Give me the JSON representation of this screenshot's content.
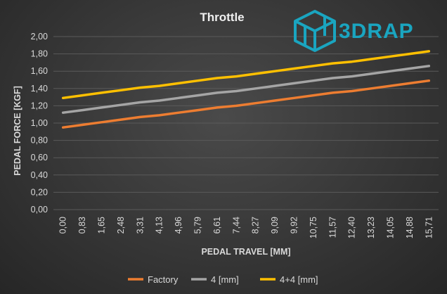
{
  "chart_data": {
    "type": "line",
    "title": "Throttle",
    "xlabel": "PEDAL TRAVEL [MM]",
    "ylabel": "PEDAL FORCE [KGF]",
    "x": [
      "0,00",
      "0,83",
      "1,65",
      "2,48",
      "3,31",
      "4,13",
      "4,96",
      "5,79",
      "6,61",
      "7,44",
      "8,27",
      "9,09",
      "9,92",
      "10,75",
      "11,57",
      "12,40",
      "13,23",
      "14,05",
      "14,88",
      "15,71"
    ],
    "ytick_labels": [
      "0,00",
      "0,20",
      "0,40",
      "0,60",
      "0,80",
      "1,00",
      "1,20",
      "1,40",
      "1,60",
      "1,80",
      "2,00"
    ],
    "ylim": [
      0,
      2.0
    ],
    "grid": true,
    "legend_position": "bottom",
    "series": [
      {
        "name": "Factory",
        "color": "#ed7d31",
        "values": [
          0.95,
          0.98,
          1.01,
          1.04,
          1.07,
          1.09,
          1.12,
          1.15,
          1.18,
          1.2,
          1.23,
          1.26,
          1.29,
          1.32,
          1.35,
          1.37,
          1.4,
          1.43,
          1.46,
          1.49
        ]
      },
      {
        "name": "4 [mm]",
        "color": "#a5a5a5",
        "values": [
          1.12,
          1.15,
          1.18,
          1.21,
          1.24,
          1.26,
          1.29,
          1.32,
          1.35,
          1.37,
          1.4,
          1.43,
          1.46,
          1.49,
          1.52,
          1.54,
          1.57,
          1.6,
          1.63,
          1.66
        ]
      },
      {
        "name": "4+4 [mm]",
        "color": "#ffc000",
        "values": [
          1.29,
          1.32,
          1.35,
          1.38,
          1.41,
          1.43,
          1.46,
          1.49,
          1.52,
          1.54,
          1.57,
          1.6,
          1.63,
          1.66,
          1.69,
          1.71,
          1.74,
          1.77,
          1.8,
          1.83
        ]
      }
    ]
  },
  "logo": {
    "text": "3DRAP",
    "color": "#1aa5c0",
    "icon": "impossible-cube-icon"
  }
}
